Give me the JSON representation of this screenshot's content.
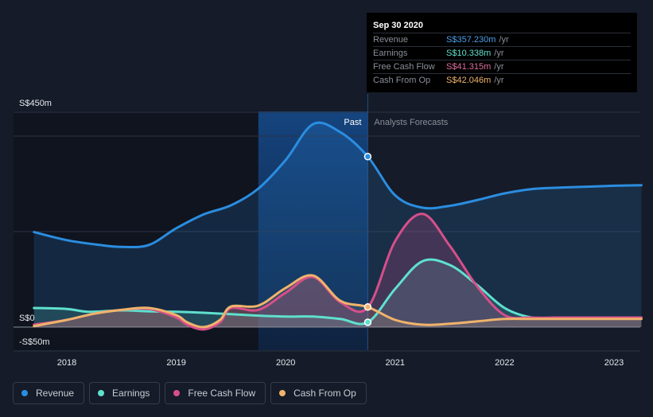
{
  "tooltip": {
    "date": "Sep 30 2020",
    "rows": [
      {
        "label": "Revenue",
        "value": "S$357.230m",
        "unit": "/yr",
        "color": "#4a9fe8"
      },
      {
        "label": "Earnings",
        "value": "S$10.338m",
        "unit": "/yr",
        "color": "#5fe0cd"
      },
      {
        "label": "Free Cash Flow",
        "value": "S$41.315m",
        "unit": "/yr",
        "color": "#e06b9e"
      },
      {
        "label": "Cash From Op",
        "value": "S$42.046m",
        "unit": "/yr",
        "color": "#f0b36b"
      }
    ]
  },
  "legend": [
    {
      "label": "Revenue",
      "color": "#2b8de0"
    },
    {
      "label": "Earnings",
      "color": "#5fe0cd"
    },
    {
      "label": "Free Cash Flow",
      "color": "#d64f8a"
    },
    {
      "label": "Cash From Op",
      "color": "#f0b36b"
    }
  ],
  "chart_data": {
    "type": "line",
    "title": "",
    "xlabel": "",
    "ylabel": "",
    "y_tick_labels": {
      "top": "S$450m",
      "zero": "S$0",
      "bottom": "-S$50m"
    },
    "ylim": [
      -50,
      450
    ],
    "xlim": [
      2017.65,
      2023.25
    ],
    "x_ticks": [
      2018,
      2019,
      2020,
      2021,
      2022,
      2023
    ],
    "x_tick_labels": [
      "2018",
      "2019",
      "2020",
      "2021",
      "2022",
      "2023"
    ],
    "past_label": "Past",
    "forecast_label": "Analysts Forecasts",
    "past_end_x": 2020.75,
    "highlight_start_x": 2019.75,
    "series": [
      {
        "name": "Revenue",
        "color": "#2b8de0",
        "points": [
          [
            2017.7,
            199
          ],
          [
            2018.0,
            182
          ],
          [
            2018.3,
            172
          ],
          [
            2018.5,
            168
          ],
          [
            2018.75,
            172
          ],
          [
            2019.0,
            207
          ],
          [
            2019.25,
            236
          ],
          [
            2019.5,
            255
          ],
          [
            2019.75,
            290
          ],
          [
            2020.0,
            350
          ],
          [
            2020.25,
            425
          ],
          [
            2020.5,
            408
          ],
          [
            2020.75,
            357
          ],
          [
            2021.0,
            276
          ],
          [
            2021.25,
            250
          ],
          [
            2021.5,
            254
          ],
          [
            2021.75,
            266
          ],
          [
            2022.0,
            280
          ],
          [
            2022.25,
            289
          ],
          [
            2022.5,
            292
          ],
          [
            2022.75,
            294
          ],
          [
            2023.0,
            296
          ],
          [
            2023.25,
            297
          ]
        ]
      },
      {
        "name": "Earnings",
        "color": "#5fe0cd",
        "points": [
          [
            2017.7,
            40
          ],
          [
            2018.0,
            38
          ],
          [
            2018.2,
            32
          ],
          [
            2018.5,
            35
          ],
          [
            2018.75,
            33
          ],
          [
            2019.0,
            32
          ],
          [
            2019.25,
            30
          ],
          [
            2019.5,
            27
          ],
          [
            2019.75,
            24
          ],
          [
            2020.0,
            22
          ],
          [
            2020.25,
            22
          ],
          [
            2020.5,
            17
          ],
          [
            2020.75,
            10
          ],
          [
            2021.0,
            80
          ],
          [
            2021.25,
            138
          ],
          [
            2021.5,
            130
          ],
          [
            2021.75,
            88
          ],
          [
            2022.0,
            40
          ],
          [
            2022.25,
            20
          ],
          [
            2022.5,
            20
          ],
          [
            2022.75,
            20
          ],
          [
            2023.0,
            20
          ],
          [
            2023.25,
            20
          ]
        ]
      },
      {
        "name": "Free Cash Flow",
        "color": "#d64f8a",
        "points": [
          [
            2017.7,
            5
          ],
          [
            2018.0,
            15
          ],
          [
            2018.25,
            28
          ],
          [
            2018.5,
            36
          ],
          [
            2018.75,
            38
          ],
          [
            2019.0,
            20
          ],
          [
            2019.1,
            5
          ],
          [
            2019.25,
            -5
          ],
          [
            2019.4,
            10
          ],
          [
            2019.5,
            40
          ],
          [
            2019.75,
            36
          ],
          [
            2020.0,
            72
          ],
          [
            2020.25,
            105
          ],
          [
            2020.5,
            52
          ],
          [
            2020.75,
            41
          ],
          [
            2021.0,
            180
          ],
          [
            2021.25,
            237
          ],
          [
            2021.5,
            170
          ],
          [
            2021.75,
            85
          ],
          [
            2022.0,
            25
          ],
          [
            2022.25,
            20
          ],
          [
            2022.5,
            20
          ],
          [
            2022.75,
            20
          ],
          [
            2023.0,
            20
          ],
          [
            2023.25,
            20
          ]
        ]
      },
      {
        "name": "Cash From Op",
        "color": "#f0b36b",
        "points": [
          [
            2017.7,
            2
          ],
          [
            2018.0,
            15
          ],
          [
            2018.25,
            28
          ],
          [
            2018.5,
            36
          ],
          [
            2018.75,
            40
          ],
          [
            2019.0,
            25
          ],
          [
            2019.1,
            10
          ],
          [
            2019.25,
            0
          ],
          [
            2019.4,
            15
          ],
          [
            2019.5,
            43
          ],
          [
            2019.75,
            45
          ],
          [
            2020.0,
            82
          ],
          [
            2020.25,
            108
          ],
          [
            2020.5,
            55
          ],
          [
            2020.75,
            42
          ],
          [
            2021.0,
            15
          ],
          [
            2021.25,
            5
          ],
          [
            2021.5,
            7
          ],
          [
            2021.75,
            12
          ],
          [
            2022.0,
            17
          ],
          [
            2022.25,
            17
          ],
          [
            2022.5,
            17
          ],
          [
            2022.75,
            17
          ],
          [
            2023.0,
            17
          ],
          [
            2023.25,
            17
          ]
        ]
      }
    ],
    "markers": [
      {
        "series": "Revenue",
        "x": 2020.75,
        "y": 357
      },
      {
        "series": "Earnings",
        "x": 2020.75,
        "y": 10
      },
      {
        "series": "Cash From Op",
        "x": 2020.75,
        "y": 42
      }
    ]
  }
}
